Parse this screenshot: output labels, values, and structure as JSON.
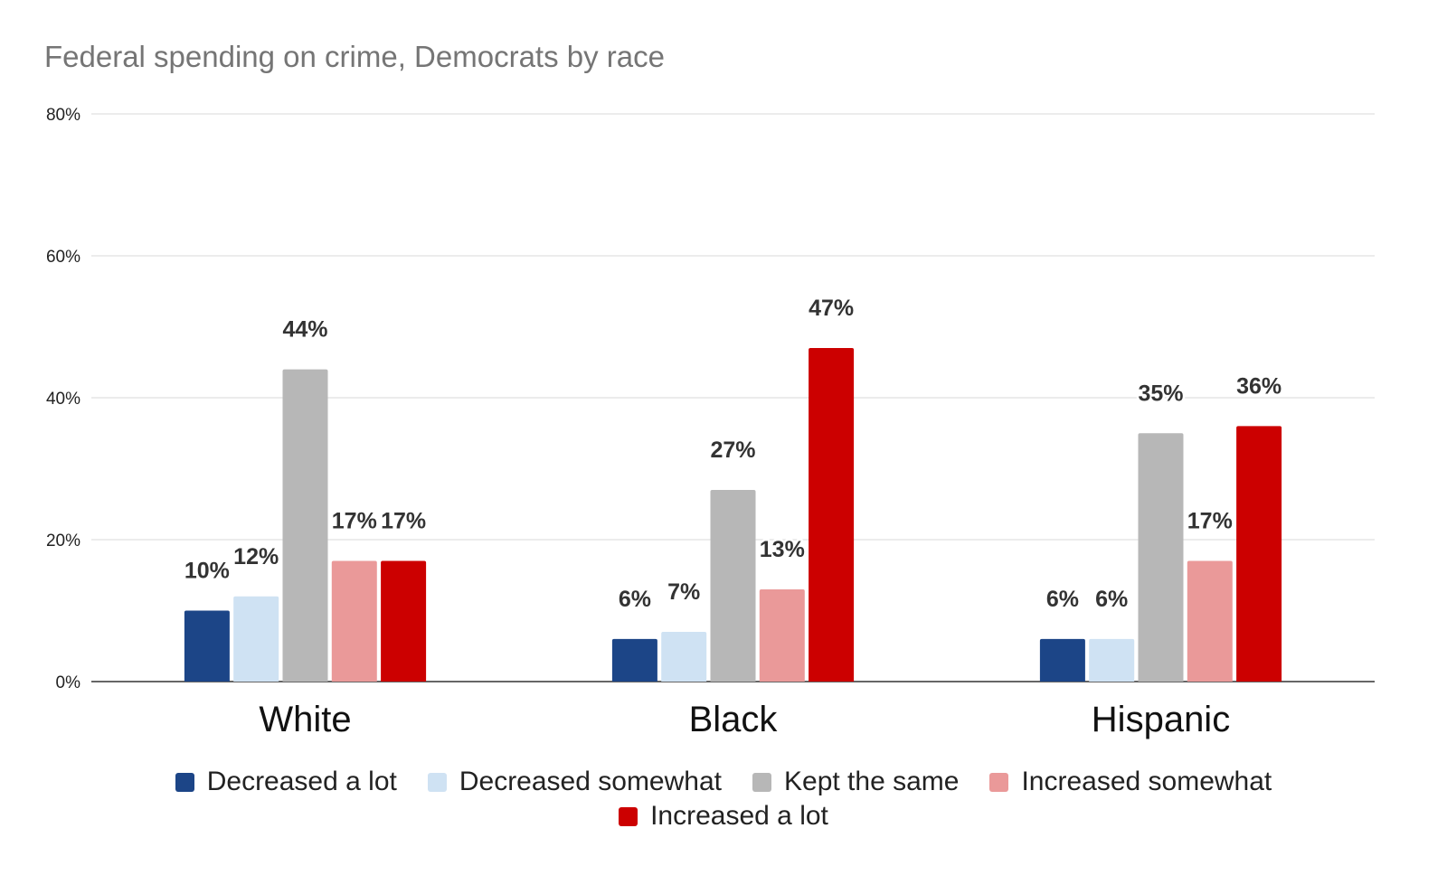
{
  "chart_data": {
    "type": "bar",
    "title": "Federal spending on crime, Democrats by race",
    "xlabel": "",
    "ylabel": "",
    "categories": [
      "White",
      "Black",
      "Hispanic"
    ],
    "series": [
      {
        "name": "Decreased a lot",
        "values": [
          10,
          6,
          6
        ],
        "labels": [
          "10%",
          "6%",
          "6%"
        ],
        "color": "#1c4587"
      },
      {
        "name": "Decreased somewhat",
        "values": [
          12,
          7,
          6
        ],
        "labels": [
          "12%",
          "7%",
          "6%"
        ],
        "color": "#cfe2f3"
      },
      {
        "name": "Kept the same",
        "values": [
          44,
          27,
          35
        ],
        "labels": [
          "44%",
          "27%",
          "35%"
        ],
        "color": "#b7b7b7"
      },
      {
        "name": "Increased somewhat",
        "values": [
          17,
          13,
          17
        ],
        "labels": [
          "17%",
          "13%",
          "17%"
        ],
        "color": "#ea9999"
      },
      {
        "name": "Increased a lot",
        "values": [
          17,
          47,
          36
        ],
        "labels": [
          "17%",
          "47%",
          "36%"
        ],
        "color": "#cc0000"
      }
    ],
    "ylim": [
      0,
      80
    ],
    "yticks": [
      0,
      20,
      40,
      60,
      80
    ],
    "ytick_labels": [
      "0%",
      "20%",
      "40%",
      "60%",
      "80%"
    ],
    "grid": true,
    "legend_position": "bottom"
  }
}
